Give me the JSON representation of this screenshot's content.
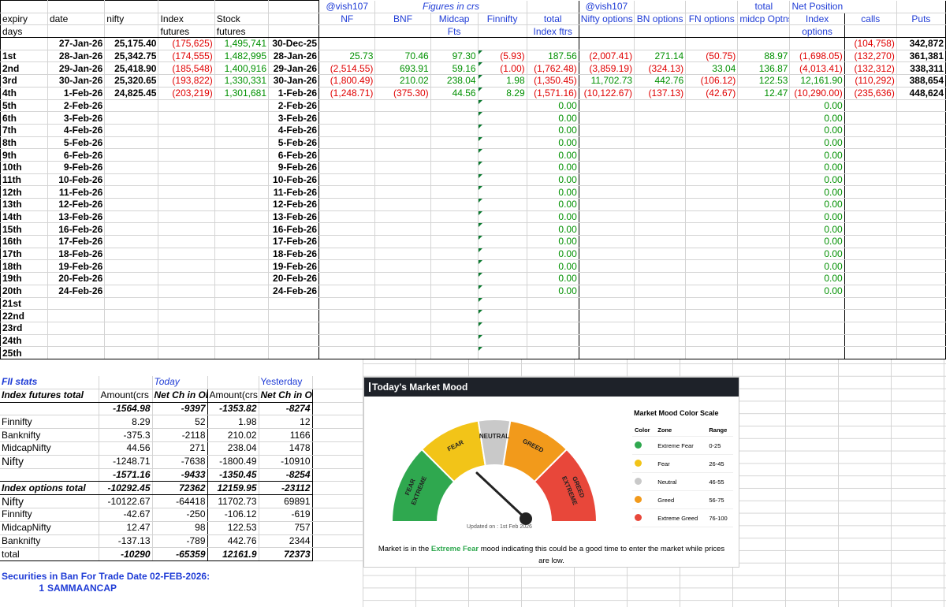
{
  "main_headers": {
    "row1": {
      "vish_nf": "@vish107",
      "figures": "Figures in crs",
      "vish_opt": "@vish107",
      "total": "total",
      "net_position": "Net Position"
    },
    "row2": {
      "expiry": "expiry",
      "date": "date",
      "nifty": "nifty",
      "index": "Index",
      "stock": "Stock",
      "nf": "NF",
      "bnf": "BNF",
      "midcap": "Midcap",
      "finnifty": "Finnifty",
      "total": "total",
      "nifty_options": "Nifty options",
      "bn_options": "BN options",
      "fn_options": "FN options",
      "midcp_optns": "midcp Optns",
      "calls": "calls",
      "puts": "Puts"
    },
    "row3": {
      "days": "days",
      "futures1": "futures",
      "futures2": "futures",
      "fts": "Fts",
      "index_ftrs": "Index ftrs",
      "options": "options"
    }
  },
  "base_row": {
    "date": "27-Jan-26",
    "nifty": "25,175.40",
    "index_fut": "(175,625)",
    "stock_fut": "1,495,741",
    "ref_date": "30-Dec-25",
    "calls": "(104,758)",
    "puts": "342,872"
  },
  "rows": [
    {
      "label": "1st",
      "date": "28-Jan-26",
      "nifty": "25,342.75",
      "index_fut": "(174,555)",
      "stock_fut": "1,482,995",
      "ref_date": "28-Jan-26",
      "nf": "25.73",
      "bnf": "70.46",
      "midcap": "97.30",
      "finnifty": "(5.93)",
      "total": "187.56",
      "nifty_opt": "(2,007.41)",
      "bn_opt": "271.14",
      "fn_opt": "(50.75)",
      "midcp_opt": "88.97",
      "index_opt": "(1,698.05)",
      "calls": "(132,270)",
      "puts": "361,381"
    },
    {
      "label": "2nd",
      "date": "29-Jan-26",
      "nifty": "25,418.90",
      "index_fut": "(185,548)",
      "stock_fut": "1,400,916",
      "ref_date": "29-Jan-26",
      "nf": "(2,514.55)",
      "bnf": "693.91",
      "midcap": "59.16",
      "finnifty": "(1.00)",
      "total": "(1,762.48)",
      "nifty_opt": "(3,859.19)",
      "bn_opt": "(324.13)",
      "fn_opt": "33.04",
      "midcp_opt": "136.87",
      "index_opt": "(4,013.41)",
      "calls": "(132,312)",
      "puts": "338,311"
    },
    {
      "label": "3rd",
      "date": "30-Jan-26",
      "nifty": "25,320.65",
      "index_fut": "(193,822)",
      "stock_fut": "1,330,331",
      "ref_date": "30-Jan-26",
      "nf": "(1,800.49)",
      "bnf": "210.02",
      "midcap": "238.04",
      "finnifty": "1.98",
      "total": "(1,350.45)",
      "nifty_opt": "11,702.73",
      "bn_opt": "442.76",
      "fn_opt": "(106.12)",
      "midcp_opt": "122.53",
      "index_opt": "12,161.90",
      "calls": "(110,292)",
      "puts": "388,654"
    },
    {
      "label": "4th",
      "date": "1-Feb-26",
      "nifty": "24,825.45",
      "index_fut": "(203,219)",
      "stock_fut": "1,301,681",
      "ref_date": "1-Feb-26",
      "nf": "(1,248.71)",
      "bnf": "(375.30)",
      "midcap": "44.56",
      "finnifty": "8.29",
      "total": "(1,571.16)",
      "nifty_opt": "(10,122.67)",
      "bn_opt": "(137.13)",
      "fn_opt": "(42.67)",
      "midcp_opt": "12.47",
      "index_opt": "(10,290.00)",
      "calls": "(235,636)",
      "puts": "448,624"
    },
    {
      "label": "5th",
      "date": "2-Feb-26",
      "ref_date": "2-Feb-26",
      "total": "0.00",
      "index_opt": "0.00"
    },
    {
      "label": "6th",
      "date": "3-Feb-26",
      "ref_date": "3-Feb-26",
      "total": "0.00",
      "index_opt": "0.00"
    },
    {
      "label": "7th",
      "date": "4-Feb-26",
      "ref_date": "4-Feb-26",
      "total": "0.00",
      "index_opt": "0.00"
    },
    {
      "label": "8th",
      "date": "5-Feb-26",
      "ref_date": "5-Feb-26",
      "total": "0.00",
      "index_opt": "0.00"
    },
    {
      "label": "9th",
      "date": "6-Feb-26",
      "ref_date": "6-Feb-26",
      "total": "0.00",
      "index_opt": "0.00"
    },
    {
      "label": "10th",
      "date": "9-Feb-26",
      "ref_date": "9-Feb-26",
      "total": "0.00",
      "index_opt": "0.00"
    },
    {
      "label": "11th",
      "date": "10-Feb-26",
      "ref_date": "10-Feb-26",
      "total": "0.00",
      "index_opt": "0.00"
    },
    {
      "label": "12th",
      "date": "11-Feb-26",
      "ref_date": "11-Feb-26",
      "total": "0.00",
      "index_opt": "0.00"
    },
    {
      "label": "13th",
      "date": "12-Feb-26",
      "ref_date": "12-Feb-26",
      "total": "0.00",
      "index_opt": "0.00"
    },
    {
      "label": "14th",
      "date": "13-Feb-26",
      "ref_date": "13-Feb-26",
      "total": "0.00",
      "index_opt": "0.00"
    },
    {
      "label": "15th",
      "date": "16-Feb-26",
      "ref_date": "16-Feb-26",
      "total": "0.00",
      "index_opt": "0.00"
    },
    {
      "label": "16th",
      "date": "17-Feb-26",
      "ref_date": "17-Feb-26",
      "total": "0.00",
      "index_opt": "0.00"
    },
    {
      "label": "17th",
      "date": "18-Feb-26",
      "ref_date": "18-Feb-26",
      "total": "0.00",
      "index_opt": "0.00"
    },
    {
      "label": "18th",
      "date": "19-Feb-26",
      "ref_date": "19-Feb-26",
      "total": "0.00",
      "index_opt": "0.00"
    },
    {
      "label": "19th",
      "date": "20-Feb-26",
      "ref_date": "20-Feb-26",
      "total": "0.00",
      "index_opt": "0.00"
    },
    {
      "label": "20th",
      "date": "24-Feb-26",
      "ref_date": "24-Feb-26",
      "total": "0.00",
      "index_opt": "0.00"
    },
    {
      "label": "21st"
    },
    {
      "label": "22nd"
    },
    {
      "label": "23rd"
    },
    {
      "label": "24th"
    },
    {
      "label": "25th"
    }
  ],
  "fii_stats": {
    "title": "FII stats",
    "today_label": "Today",
    "yesterday_label": "Yesterday",
    "index_futures_total": "Index futures total",
    "amount_header": "Amount(crs",
    "net_ch_header": "Net Ch in OI",
    "fut_total_today": {
      "amt": "-1564.98",
      "oi": "-9397"
    },
    "fut_total_yest": {
      "amt": "-1353.82",
      "oi": "-8274"
    },
    "fut_rows": [
      {
        "label": "Finnifty",
        "t_amt": "8.29",
        "t_oi": "52",
        "y_amt": "1.98",
        "y_oi": "12"
      },
      {
        "label": "Banknifty",
        "t_amt": "-375.3",
        "t_oi": "-2118",
        "y_amt": "210.02",
        "y_oi": "1166"
      },
      {
        "label": "MidcapNifty",
        "t_amt": "44.56",
        "t_oi": "271",
        "y_amt": "238.04",
        "y_oi": "1478"
      },
      {
        "label": "Nifty",
        "t_amt": "-1248.71",
        "t_oi": "-7638",
        "y_amt": "-1800.49",
        "y_oi": "-10910"
      }
    ],
    "fut_sum_today": {
      "amt": "-1571.16",
      "oi": "-9433"
    },
    "fut_sum_yest": {
      "amt": "-1350.45",
      "oi": "-8254"
    },
    "index_options_total": "Index options total",
    "opt_total_today": {
      "amt": "-10292.45",
      "oi": "72362"
    },
    "opt_total_yest": {
      "amt": "12159.95",
      "oi": "-23112"
    },
    "opt_rows": [
      {
        "label": "Nifty",
        "t_amt": "-10122.67",
        "t_oi": "-64418",
        "y_amt": "11702.73",
        "y_oi": "69891"
      },
      {
        "label": "Finnifty",
        "t_amt": "-42.67",
        "t_oi": "-250",
        "y_amt": "-106.12",
        "y_oi": "-619"
      },
      {
        "label": "MidcapNifty",
        "t_amt": "12.47",
        "t_oi": "98",
        "y_amt": "122.53",
        "y_oi": "757"
      },
      {
        "label": "Banknifty",
        "t_amt": "-137.13",
        "t_oi": "-789",
        "y_amt": "442.76",
        "y_oi": "2344"
      }
    ],
    "total_label": "total",
    "opt_sum_today": {
      "amt": "-10290",
      "oi": "-65359"
    },
    "opt_sum_yest": {
      "amt": "12161.9",
      "oi": "72373"
    }
  },
  "ban": {
    "title": "Securities in Ban For Trade Date 02-FEB-2026:",
    "index": "1",
    "item": "SAMMAANCAP"
  },
  "market_mood": {
    "header": "Today's Market Mood",
    "scale_title": "Market Mood Color Scale",
    "col_color": "Color",
    "col_zone": "Zone",
    "col_range": "Range",
    "zones": [
      {
        "name": "Extreme Fear",
        "range": "0-25",
        "color": "#2fa84f"
      },
      {
        "name": "Fear",
        "range": "26-45",
        "color": "#f2c418"
      },
      {
        "name": "Neutral",
        "range": "46-55",
        "color": "#c9c9c9"
      },
      {
        "name": "Greed",
        "range": "56-75",
        "color": "#f29a1b"
      },
      {
        "name": "Extreme Greed",
        "range": "76-100",
        "color": "#e8473a"
      }
    ],
    "gauge_labels": [
      "EXTREME",
      "FEAR",
      "FEAR",
      "NEUTRAL",
      "GREED",
      "EXTREME",
      "GREED"
    ],
    "updated": "Updated on : 1st Feb 2026",
    "msg_pre": "Market is in the",
    "msg_mood": "Extreme Fear",
    "msg_post": "mood indicating this could be a good time to enter the market while prices are low.",
    "needle_value": 22
  }
}
